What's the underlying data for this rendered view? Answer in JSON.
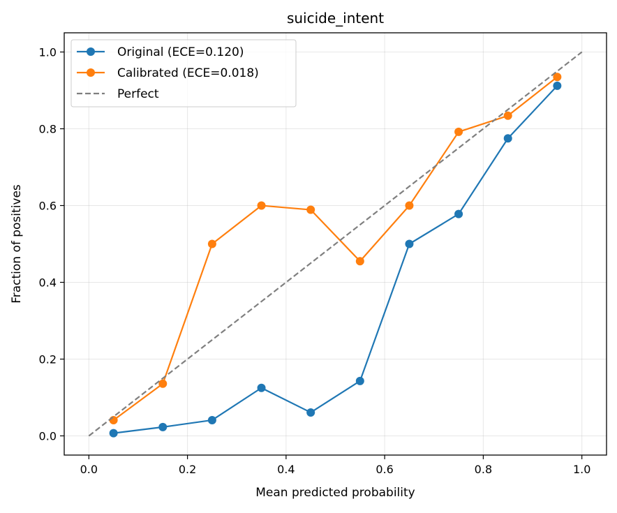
{
  "chart_data": {
    "type": "line",
    "title": "suicide_intent",
    "xlabel": "Mean predicted probability",
    "ylabel": "Fraction of positives",
    "xlim": [
      -0.05,
      1.05
    ],
    "ylim": [
      -0.05,
      1.05
    ],
    "xticks": [
      0.0,
      0.2,
      0.4,
      0.6,
      0.8,
      1.0
    ],
    "yticks": [
      0.0,
      0.2,
      0.4,
      0.6,
      0.8,
      1.0
    ],
    "xtick_labels": [
      "0.0",
      "0.2",
      "0.4",
      "0.6",
      "0.8",
      "1.0"
    ],
    "ytick_labels": [
      "0.0",
      "0.2",
      "0.4",
      "0.6",
      "0.8",
      "1.0"
    ],
    "grid": true,
    "legend_position": "top-left",
    "series": [
      {
        "name": "Original (ECE=0.120)",
        "color": "#1f77b4",
        "marker": "circle",
        "x": [
          0.05,
          0.15,
          0.25,
          0.35,
          0.45,
          0.55,
          0.65,
          0.75,
          0.85,
          0.95
        ],
        "y": [
          0.007,
          0.023,
          0.041,
          0.125,
          0.061,
          0.143,
          0.5,
          0.578,
          0.775,
          0.912
        ]
      },
      {
        "name": "Calibrated (ECE=0.018)",
        "color": "#ff7f0e",
        "marker": "circle",
        "x": [
          0.05,
          0.15,
          0.25,
          0.35,
          0.45,
          0.55,
          0.65,
          0.75,
          0.85,
          0.95
        ],
        "y": [
          0.041,
          0.136,
          0.5,
          0.6,
          0.589,
          0.455,
          0.6,
          0.792,
          0.834,
          0.935
        ]
      },
      {
        "name": "Perfect",
        "color": "#7f7f7f",
        "marker": "none",
        "dashed": true,
        "x": [
          0.0,
          1.0
        ],
        "y": [
          0.0,
          1.0
        ]
      }
    ]
  }
}
